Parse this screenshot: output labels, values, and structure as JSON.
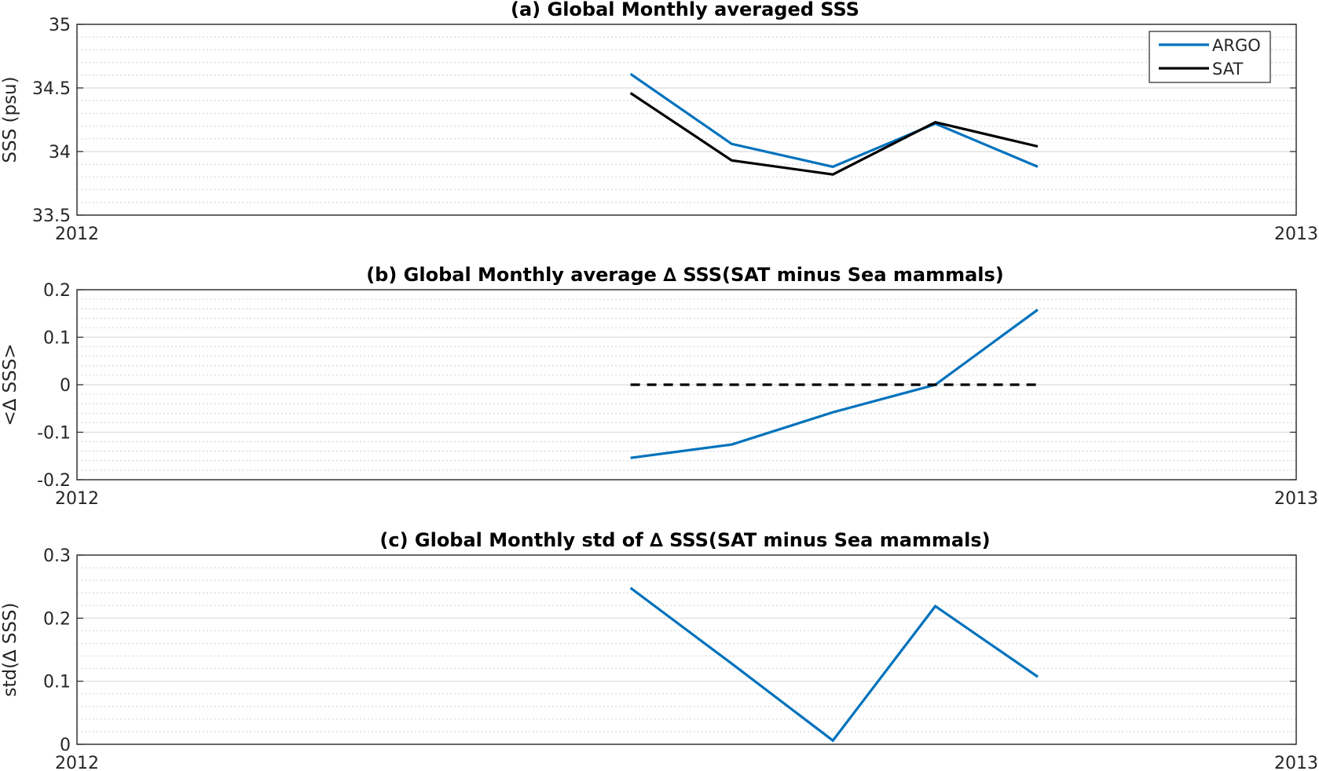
{
  "chart_data": [
    {
      "type": "line",
      "title": "(a) Global Monthly averaged SSS",
      "xlabel": "",
      "ylabel": "SSS (psu)",
      "xlim": [
        2012,
        2013
      ],
      "ylim": [
        33.5,
        35
      ],
      "x_tick_labels": [
        "2012",
        "2013"
      ],
      "y_ticks": [
        33.5,
        34,
        34.5,
        35
      ],
      "y_tick_labels": [
        "33.5",
        "34",
        "34.5",
        "35"
      ],
      "minor_step": 0.1,
      "grid": true,
      "legend": "top-right",
      "x": [
        2012.454,
        2012.537,
        2012.62,
        2012.704,
        2012.788
      ],
      "series": [
        {
          "name": "ARGO",
          "values": [
            34.61,
            34.06,
            33.88,
            34.22,
            33.88
          ],
          "color": "#0072BD",
          "dash": ""
        },
        {
          "name": "SAT",
          "values": [
            34.46,
            33.93,
            33.82,
            34.23,
            34.04
          ],
          "color": "#000000",
          "dash": ""
        }
      ]
    },
    {
      "type": "line",
      "title": "(b) Global Monthly average ∆ SSS(SAT minus Sea mammals)",
      "xlabel": "",
      "ylabel": "<∆ SSS>",
      "xlim": [
        2012,
        2013
      ],
      "ylim": [
        -0.2,
        0.2
      ],
      "x_tick_labels": [
        "2012",
        "2013"
      ],
      "y_ticks": [
        -0.2,
        -0.1,
        0,
        0.1,
        0.2
      ],
      "y_tick_labels": [
        "-0.2",
        "-0.1",
        "0",
        "0.1",
        "0.2"
      ],
      "minor_step": 0.02,
      "grid": true,
      "x": [
        2012.454,
        2012.537,
        2012.62,
        2012.704,
        2012.788
      ],
      "series": [
        {
          "values": [
            -0.154,
            -0.126,
            -0.058,
            0.0,
            0.158
          ],
          "color": "#0072BD",
          "dash": ""
        },
        {
          "values": [
            0,
            0,
            0,
            0,
            0
          ],
          "color": "#000000",
          "dash": "12 9"
        }
      ]
    },
    {
      "type": "line",
      "title": "(c) Global Monthly std of ∆ SSS(SAT minus Sea mammals)",
      "xlabel": "",
      "ylabel": "std(∆ SSS)",
      "xlim": [
        2012,
        2013
      ],
      "ylim": [
        0,
        0.3
      ],
      "x_tick_labels": [
        "2012",
        "2013"
      ],
      "y_ticks": [
        0,
        0.1,
        0.2,
        0.3
      ],
      "y_tick_labels": [
        "0",
        "0.1",
        "0.2",
        "0.3"
      ],
      "minor_step": 0.02,
      "grid": true,
      "x": [
        2012.454,
        2012.537,
        2012.62,
        2012.704,
        2012.788
      ],
      "series": [
        {
          "values": [
            0.248,
            0.128,
            0.006,
            0.219,
            0.107
          ],
          "color": "#0072BD",
          "dash": ""
        }
      ]
    }
  ]
}
